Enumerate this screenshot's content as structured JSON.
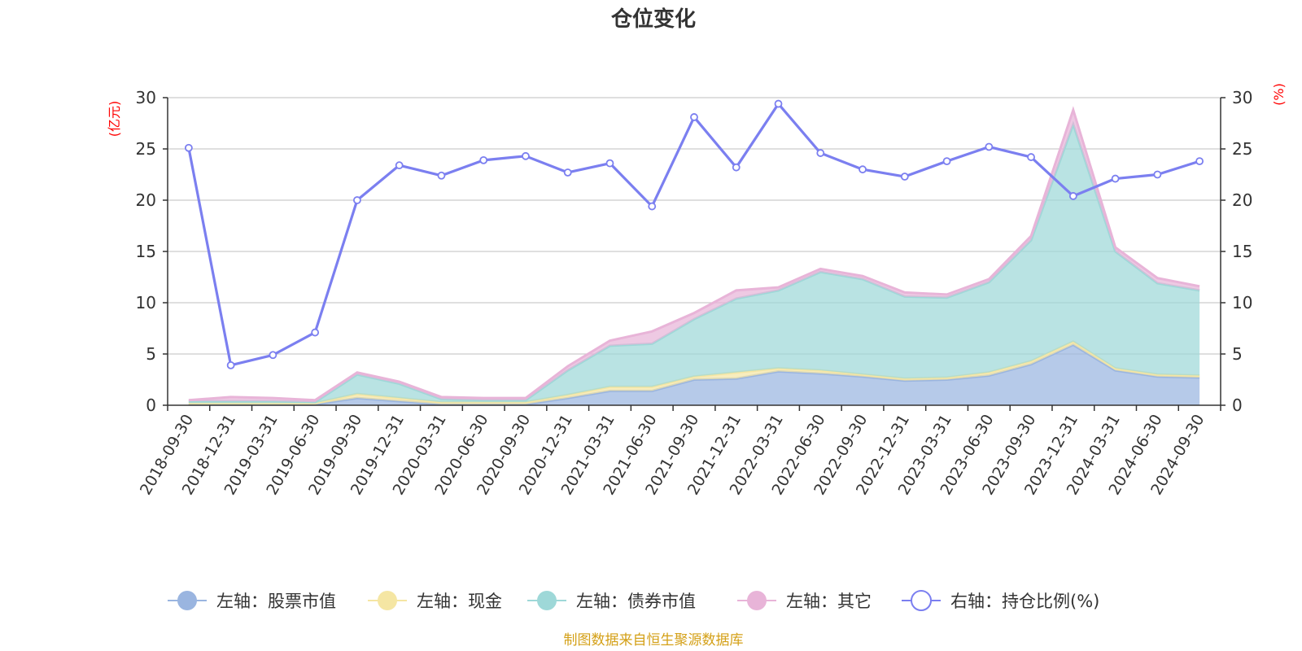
{
  "chart_data": {
    "type": "area",
    "title": "仓位变化",
    "left_unit": "(亿元)",
    "right_unit": "(%)",
    "categories": [
      "2018-09-30",
      "2018-12-31",
      "2019-03-31",
      "2019-06-30",
      "2019-09-30",
      "2019-12-31",
      "2020-03-31",
      "2020-06-30",
      "2020-09-30",
      "2020-12-31",
      "2021-03-31",
      "2021-06-30",
      "2021-09-30",
      "2021-12-31",
      "2022-03-31",
      "2022-06-30",
      "2022-09-30",
      "2022-12-31",
      "2023-03-31",
      "2023-06-30",
      "2023-09-30",
      "2023-12-31",
      "2024-03-31",
      "2024-06-30",
      "2024-09-30"
    ],
    "y_left": {
      "min": 0,
      "max": 30,
      "ticks": [
        0,
        5,
        10,
        15,
        20,
        25,
        30
      ]
    },
    "y_right": {
      "min": 0,
      "max": 30,
      "ticks": [
        0,
        5,
        10,
        15,
        20,
        25,
        30
      ]
    },
    "grid": true,
    "legend_position": "bottom-center",
    "series": [
      {
        "name": "左轴：股票市值",
        "axis": "left",
        "stack": true,
        "color": "#9ab5e0",
        "values": [
          0.1,
          0.1,
          0.1,
          0.1,
          0.7,
          0.4,
          0.1,
          0.1,
          0.1,
          0.7,
          1.4,
          1.4,
          2.5,
          2.6,
          3.3,
          3.1,
          2.8,
          2.4,
          2.5,
          2.9,
          4.0,
          5.9,
          3.4,
          2.8,
          2.7
        ]
      },
      {
        "name": "左轴：现金",
        "axis": "left",
        "stack": true,
        "color": "#f5e6a3",
        "values": [
          0.1,
          0.1,
          0.1,
          0.1,
          0.4,
          0.3,
          0.2,
          0.2,
          0.2,
          0.3,
          0.4,
          0.4,
          0.3,
          0.6,
          0.3,
          0.3,
          0.2,
          0.2,
          0.2,
          0.3,
          0.3,
          0.3,
          0.2,
          0.2,
          0.2
        ]
      },
      {
        "name": "左轴：债券市值",
        "axis": "left",
        "stack": true,
        "color": "#9ed8d8",
        "values": [
          0.2,
          0.2,
          0.2,
          0.1,
          1.9,
          1.4,
          0.3,
          0.2,
          0.2,
          2.4,
          4.0,
          4.2,
          5.6,
          7.2,
          7.6,
          9.6,
          9.3,
          8.0,
          7.8,
          8.8,
          11.8,
          21.2,
          11.4,
          8.9,
          8.3
        ]
      },
      {
        "name": "左轴：其它",
        "axis": "left",
        "stack": true,
        "color": "#e8b4d8",
        "values": [
          0.1,
          0.4,
          0.3,
          0.2,
          0.2,
          0.2,
          0.2,
          0.2,
          0.2,
          0.4,
          0.5,
          1.2,
          0.6,
          0.8,
          0.3,
          0.3,
          0.3,
          0.4,
          0.3,
          0.3,
          0.4,
          1.4,
          0.4,
          0.5,
          0.4
        ]
      },
      {
        "name": "右轴：持仓比例(%)",
        "axis": "right",
        "type": "line",
        "color": "#7b7ff0",
        "values": [
          25.1,
          3.9,
          4.9,
          7.1,
          20.0,
          23.4,
          22.4,
          23.9,
          24.3,
          22.7,
          23.6,
          19.4,
          28.1,
          23.2,
          29.4,
          24.6,
          23.0,
          22.3,
          23.8,
          25.2,
          24.2,
          20.4,
          22.1,
          22.5,
          23.8
        ]
      }
    ],
    "source_note": "制图数据来自恒生聚源数据库"
  }
}
